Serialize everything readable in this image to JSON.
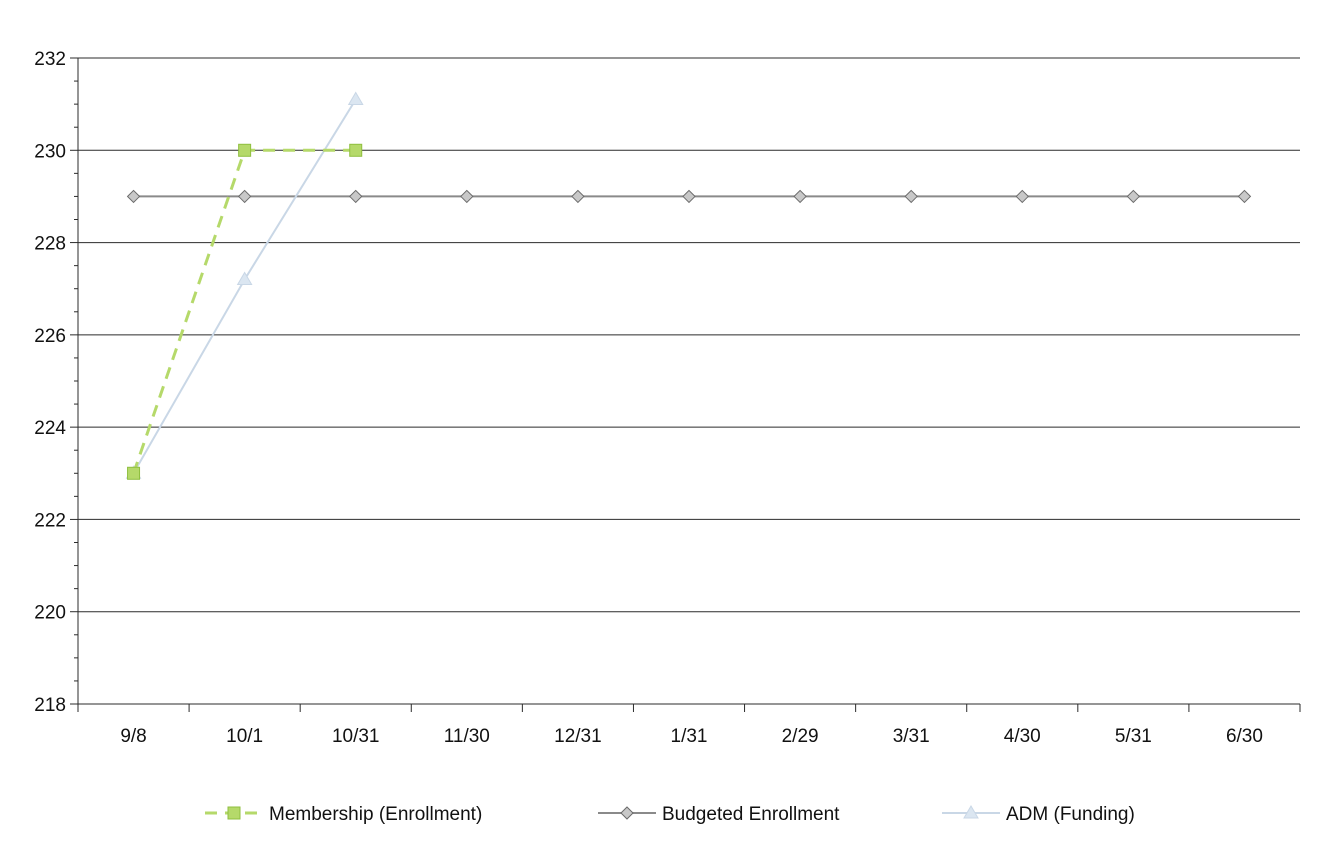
{
  "chart_data": {
    "type": "line",
    "title": "",
    "xlabel": "",
    "ylabel": "",
    "categories": [
      "9/8",
      "10/1",
      "10/31",
      "11/30",
      "12/31",
      "1/31",
      "2/29",
      "3/31",
      "4/30",
      "5/31",
      "6/30"
    ],
    "ylim": [
      218,
      232
    ],
    "yticks": [
      218,
      220,
      222,
      224,
      226,
      228,
      230,
      232
    ],
    "grid": "horizontal",
    "legend_position": "bottom",
    "series": [
      {
        "name": "Membership (Enrollment)",
        "values": [
          223,
          230,
          230,
          null,
          null,
          null,
          null,
          null,
          null,
          null,
          null
        ],
        "color": "#b5d96a",
        "line_style": "dashed",
        "marker": "square"
      },
      {
        "name": "Budgeted Enrollment",
        "values": [
          229,
          229,
          229,
          229,
          229,
          229,
          229,
          229,
          229,
          229,
          229
        ],
        "color": "#8a8a8a",
        "line_style": "solid",
        "marker": "diamond"
      },
      {
        "name": "ADM (Funding)",
        "values": [
          223,
          227.2,
          231.1,
          null,
          null,
          null,
          null,
          null,
          null,
          null,
          null
        ],
        "color": "#c9d7e6",
        "line_style": "solid",
        "marker": "triangle"
      }
    ]
  }
}
